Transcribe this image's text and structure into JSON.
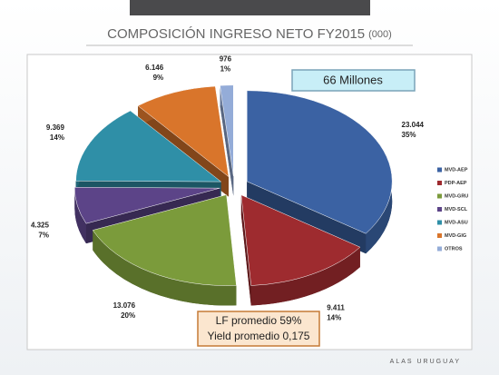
{
  "chart_data": {
    "type": "pie",
    "title": "COMPOSICIÓN INGRESO NETO FY2015",
    "subtitle": "(000)",
    "annotations": [
      "66 Millones",
      "LF promedio  59%",
      "Yield promedio 0,175"
    ],
    "categories": [
      "MVD-AEP",
      "PDP-AEP",
      "MVD-GRU",
      "MVD-SCL",
      "MVD-ASU",
      "MVD-GIG",
      "OTROS"
    ],
    "values": [
      23044,
      9411,
      13076,
      4325,
      9369,
      6146,
      976
    ],
    "value_labels": [
      "23.044",
      "9.411",
      "13.076",
      "4.325",
      "9.369",
      "6.146",
      "976"
    ],
    "percent_labels": [
      "35%",
      "14%",
      "20%",
      "7%",
      "14%",
      "9%",
      "1%"
    ],
    "colors": [
      "#3b62a3",
      "#9e2b2f",
      "#7b9b3b",
      "#5c4488",
      "#2f8fa7",
      "#d9752b",
      "#94acd8"
    ],
    "legend": "right",
    "logo": "ALAS URUGUAY"
  }
}
